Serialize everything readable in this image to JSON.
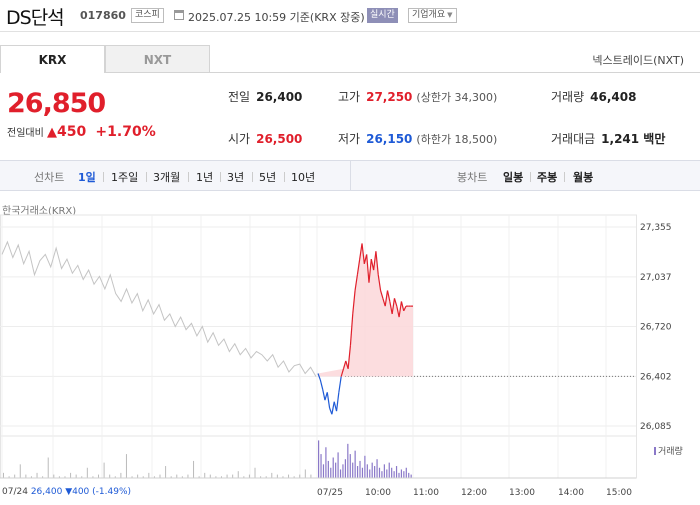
{
  "header": {
    "stock_name": "DS단석",
    "stock_code": "017860",
    "market_badge": "코스피",
    "timestamp": "2025.07.25 10:59 기준(KRX 장중)",
    "realtime_label": "실시간",
    "company_overview_label": "기업개요",
    "icons": {
      "calendar": "calendar-icon",
      "dropdown": "chevron-down-icon"
    }
  },
  "tabs": {
    "krx": "KRX",
    "nxt": "NXT",
    "nextrade": "넥스트레이드(NXT)"
  },
  "price": {
    "current": "26,850",
    "change_label": "전일대비",
    "change_arrow": "▲",
    "change_value": "450",
    "change_pct": "+1.70%"
  },
  "stats": {
    "prev_close": {
      "label": "전일",
      "value": "26,400"
    },
    "open": {
      "label": "시가",
      "value": "26,500"
    },
    "high": {
      "label": "고가",
      "value": "27,250",
      "sub": "(상한가 34,300)"
    },
    "low": {
      "label": "저가",
      "value": "26,150",
      "sub": "(하한가 18,500)"
    },
    "volume": {
      "label": "거래량",
      "value": "46,408"
    },
    "amount": {
      "label": "거래대금",
      "value": "1,241 백만"
    }
  },
  "period_bar": {
    "line_label": "선차트",
    "line_items": [
      "1일",
      "1주일",
      "3개월",
      "1년",
      "3년",
      "5년",
      "10년"
    ],
    "selected": "1일",
    "candle_label": "봉차트",
    "candle_items": [
      "일봉",
      "주봉",
      "월봉"
    ]
  },
  "chart_data": {
    "type": "line",
    "source_label": "한국거래소(KRX)",
    "ylim": [
      26085,
      27355
    ],
    "y_ticks": [
      "27,355",
      "27,037",
      "26,720",
      "26,402",
      "26,085"
    ],
    "x_ticks": [
      "07/24",
      "07/25",
      "10:00",
      "11:00",
      "12:00",
      "13:00",
      "14:00",
      "15:00"
    ],
    "reference_value": 26402,
    "prev_day_prices": [
      27180,
      27260,
      27160,
      27240,
      27120,
      27200,
      27050,
      27140,
      27180,
      27100,
      27220,
      27090,
      27150,
      27060,
      27110,
      27020,
      27080,
      26990,
      27040,
      26960,
      27050,
      26930,
      26880,
      26960,
      26870,
      26930,
      26820,
      26890,
      26800,
      26860,
      26760,
      26800,
      26720,
      26780,
      26700,
      26740,
      26660,
      26720,
      26620,
      26680,
      26600,
      26640,
      26560,
      26610,
      26540,
      26580,
      26520,
      26560,
      26540,
      26500,
      26540,
      26460,
      26500,
      26430,
      26470,
      26480,
      26420,
      26460,
      26400
    ],
    "today_prices": [
      26420,
      26380,
      26320,
      26250,
      26300,
      26200,
      26160,
      26240,
      26180,
      26300,
      26400,
      26450,
      26500,
      26450,
      26600,
      26800,
      26950,
      27050,
      27150,
      27250,
      27120,
      27180,
      27000,
      27150,
      27080,
      27200,
      27050,
      26950,
      26900,
      26850,
      26950,
      26880,
      26800,
      26900,
      26850,
      26780,
      26880,
      26820,
      26850,
      26850,
      26850,
      26850
    ],
    "volume_label": "거래량",
    "volume_prev": [
      3,
      1,
      2,
      8,
      2,
      1,
      3,
      1,
      12,
      2,
      1,
      1,
      3,
      2,
      1,
      6,
      1,
      2,
      9,
      2,
      1,
      3,
      14,
      1,
      2,
      1,
      3,
      1,
      2,
      7,
      1,
      2,
      1,
      2,
      10,
      1,
      3,
      2,
      1,
      1,
      2,
      2,
      4,
      1,
      2,
      6,
      1,
      1,
      3,
      2,
      1,
      2,
      1,
      2,
      5,
      2
    ],
    "volume_today": [
      22,
      14,
      8,
      18,
      10,
      6,
      12,
      9,
      15,
      5,
      8,
      11,
      20,
      14,
      9,
      16,
      7,
      10,
      6,
      13,
      8,
      5,
      9,
      7,
      11,
      6,
      4,
      8,
      5,
      9,
      6,
      4,
      7,
      3,
      5,
      4,
      6,
      3,
      2
    ],
    "colors": {
      "up": "#e01f2b",
      "down": "#1e5ad6",
      "prev": "#c4c4c4",
      "fill": "#fbd7d9",
      "volume": "#8a78c8"
    }
  },
  "bottom_info": {
    "date": "07/24",
    "price": "26,400",
    "arrow": "▼",
    "change": "400",
    "pct": "(-1.49%)"
  }
}
